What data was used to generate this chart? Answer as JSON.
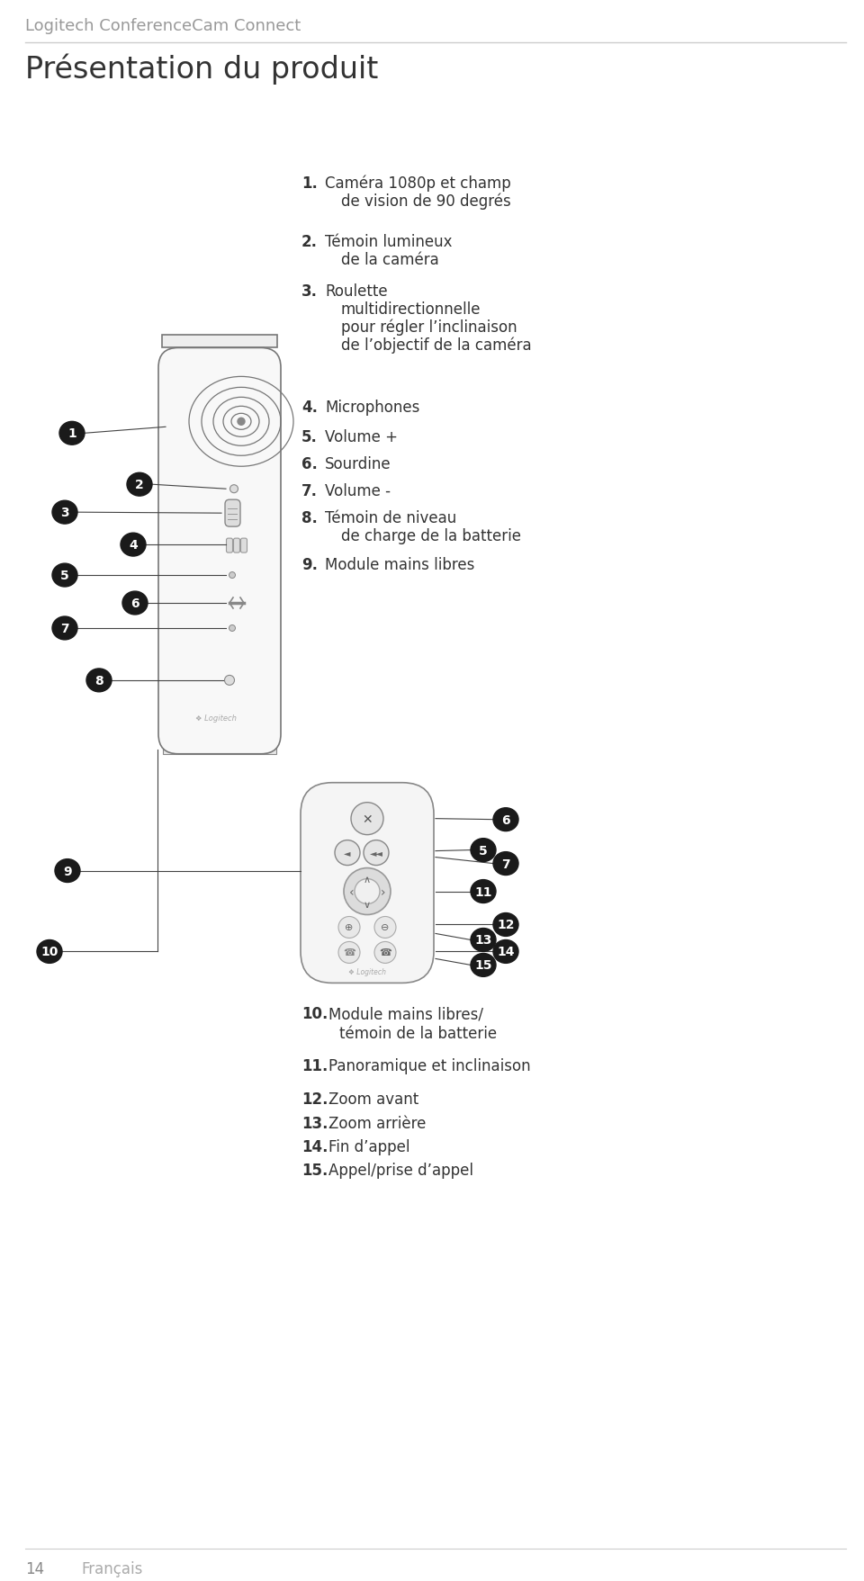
{
  "bg_color": "#ffffff",
  "header_title": "Logitech ConferenceCam Connect",
  "section_title": "Présentation du produit",
  "page_num": "14",
  "page_lang": "Français",
  "bullet_color": "#1a1a1a",
  "bullet_text_color": "#ffffff",
  "line_color": "#444444",
  "device_outline_color": "#555555",
  "header_color": "#999999",
  "title_color": "#333333",
  "text_color": "#333333",
  "annotations_right": [
    {
      "num": "1.",
      "bold": true,
      "text": "Caméra 1080p et champ\n     de vision de 90 degrés"
    },
    {
      "num": "2.",
      "bold": true,
      "text": "Témoin lumineux\n     de la caméra"
    },
    {
      "num": "3.",
      "bold": true,
      "text": "Roulette\n     multidirectionnelle\n     pour régler l’inclinaison\n     de l’objectif de la caméra"
    },
    {
      "num": "4.",
      "bold": true,
      "text": "Microphones"
    },
    {
      "num": "5.",
      "bold": true,
      "text": "Volume +"
    },
    {
      "num": "6.",
      "bold": true,
      "text": "Sourdine"
    },
    {
      "num": "7.",
      "bold": true,
      "text": "Volume -"
    },
    {
      "num": "8.",
      "bold": true,
      "text": "Témoin de niveau\n     de charge de la batterie"
    },
    {
      "num": "9.",
      "bold": true,
      "text": "Module mains libres"
    }
  ],
  "annotations_bottom": [
    {
      "num": "10.",
      "bold": true,
      "text": "Module mains libres/\n      témoin de la batterie"
    },
    {
      "num": "11.",
      "bold": true,
      "text": "Panoramique et inclinaison"
    },
    {
      "num": "12.",
      "bold": true,
      "text": "Zoom avant"
    },
    {
      "num": "13.",
      "bold": true,
      "text": "Zoom arrière"
    },
    {
      "num": "14.",
      "bold": true,
      "text": "Fin d’appel"
    },
    {
      "num": "15.",
      "bold": true,
      "text": "Appel/prise d’appel"
    }
  ]
}
